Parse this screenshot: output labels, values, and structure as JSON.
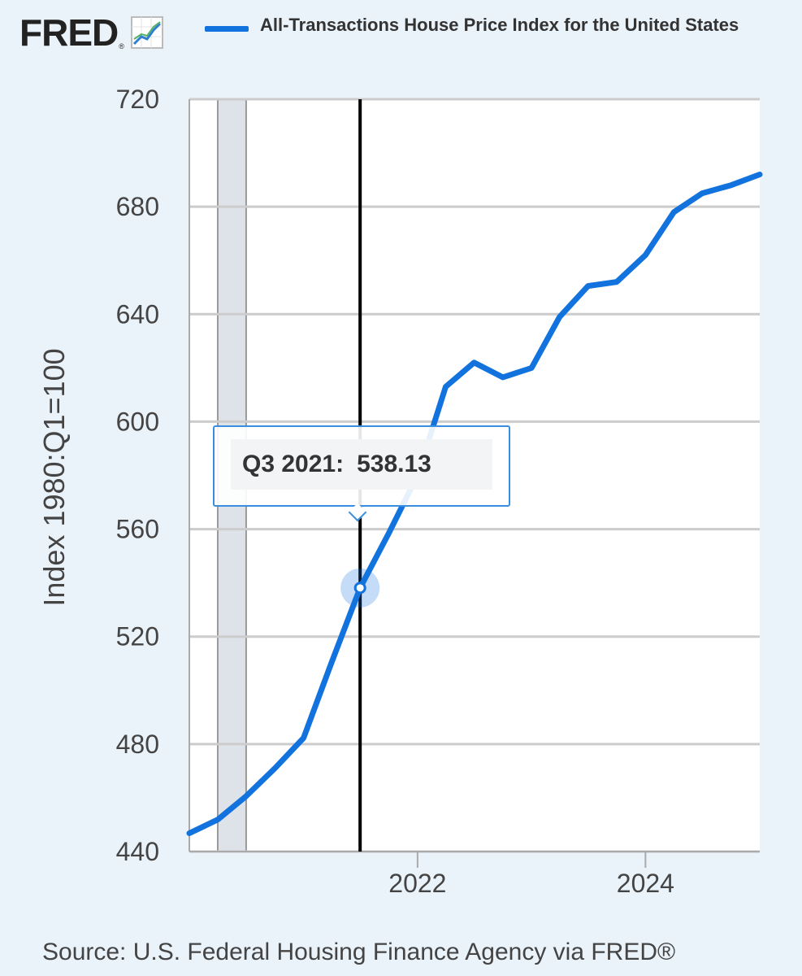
{
  "header": {
    "logo_text": "FRED",
    "logo_mark": "®",
    "logo_icon": "line-chart-icon",
    "legend_label": "All-Transactions House Price Index for the United States"
  },
  "tooltip": {
    "date": "Q3 2021:",
    "value": "538.13"
  },
  "source": "Source: U.S. Federal Housing Finance Agency via FRED®",
  "colors": {
    "series": "#1273de",
    "background": "#eaf2fa",
    "grid": "#cccccc",
    "recession": "#dde3e9",
    "crosshair": "#000000"
  },
  "chart_data": {
    "type": "line",
    "ylabel": "Index 1980:Q1=100",
    "ylim": [
      440,
      720
    ],
    "yticks": [
      440,
      480,
      520,
      560,
      600,
      640,
      680,
      720
    ],
    "xlim": [
      "2020-01-01",
      "2025-01-01"
    ],
    "xticks": [
      {
        "x": "2022-01-01",
        "label": "2022"
      },
      {
        "x": "2024-01-01",
        "label": "2024"
      }
    ],
    "grid": true,
    "recession_band": [
      "2020-04-01",
      "2020-07-01"
    ],
    "highlight": {
      "x": "2021-07-01",
      "y": 538.13,
      "label": "Q3 2021"
    },
    "series": [
      {
        "name": "All-Transactions House Price Index for the United States",
        "x": [
          "2020-01-01",
          "2020-04-01",
          "2020-07-01",
          "2020-10-01",
          "2021-01-01",
          "2021-04-01",
          "2021-07-01",
          "2021-10-01",
          "2022-01-01",
          "2022-04-01",
          "2022-07-01",
          "2022-10-01",
          "2023-01-01",
          "2023-04-01",
          "2023-07-01",
          "2023-10-01",
          "2024-01-01",
          "2024-04-01",
          "2024-07-01",
          "2024-10-01",
          "2025-01-01"
        ],
        "values": [
          446.8,
          451.9,
          460.6,
          471.0,
          482.3,
          510.5,
          538.13,
          558.5,
          580.0,
          613.0,
          622.0,
          616.5,
          620.0,
          639.0,
          650.5,
          652.0,
          662.0,
          678.0,
          685.0,
          688.0,
          692.0
        ]
      }
    ]
  }
}
